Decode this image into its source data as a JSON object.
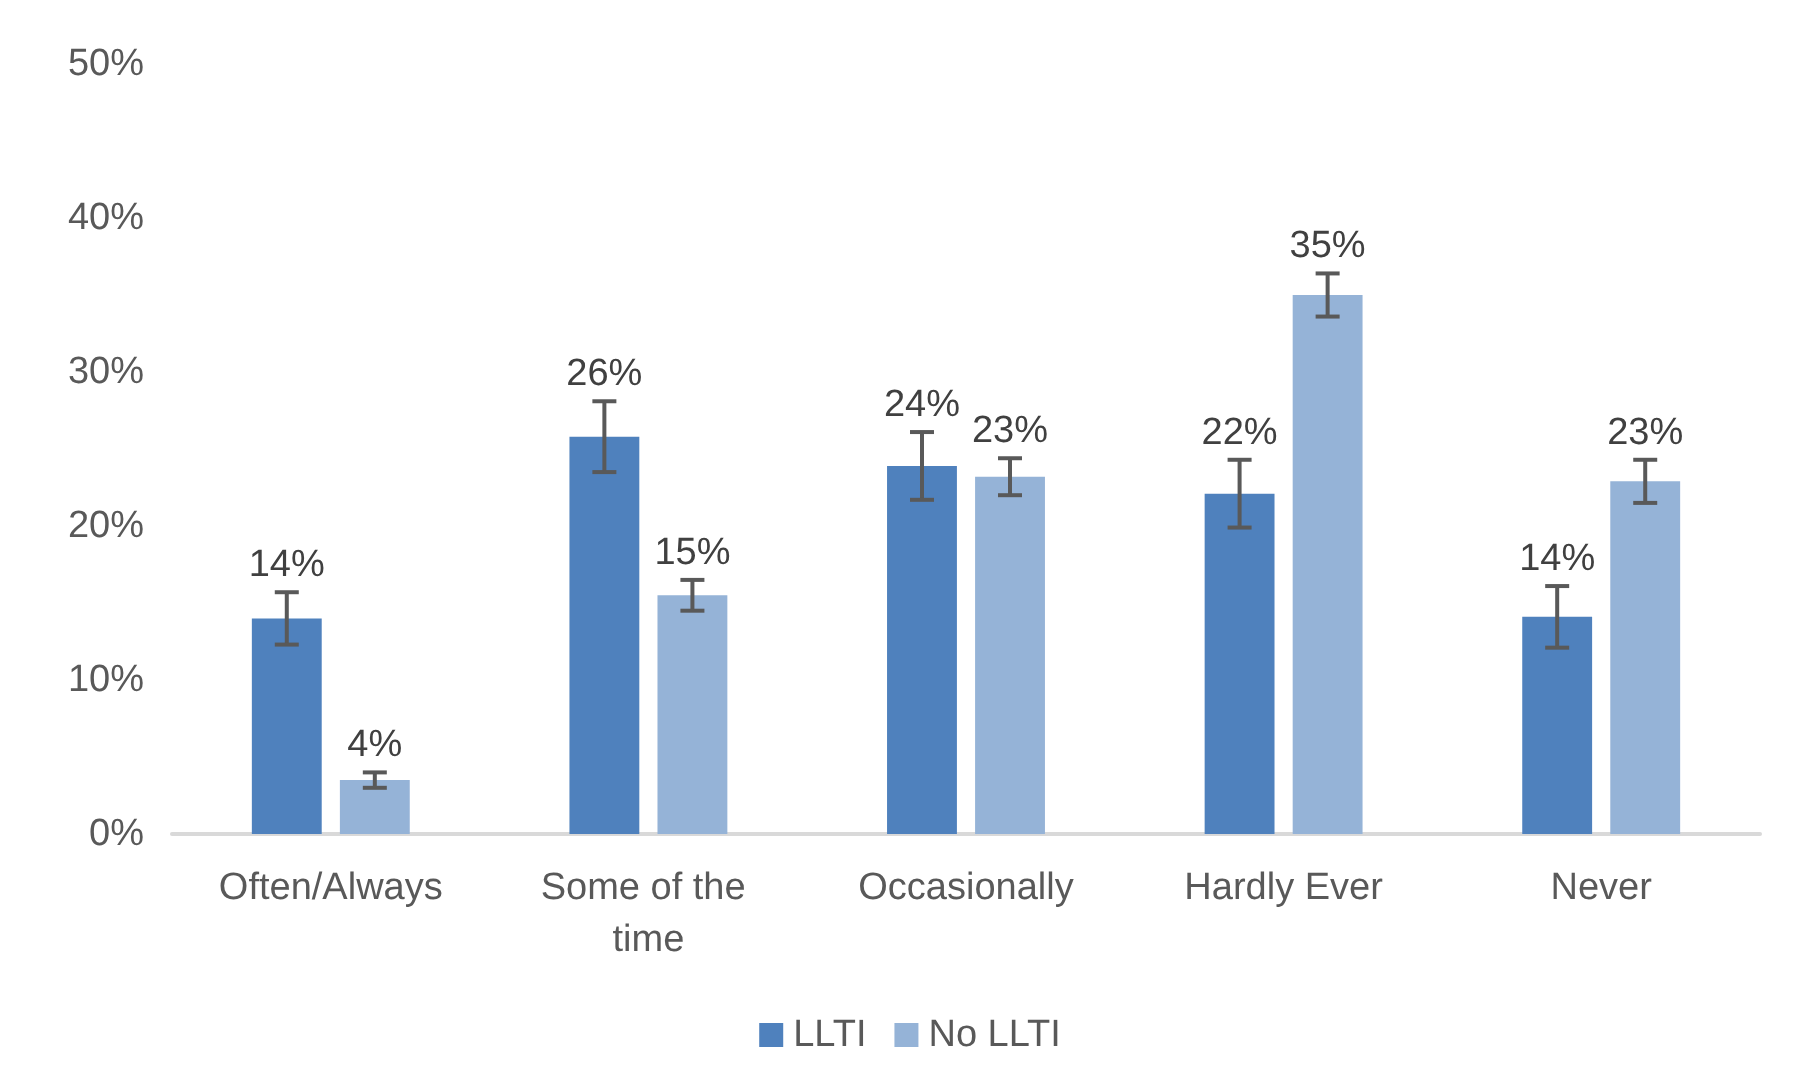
{
  "chart_data": {
    "type": "bar",
    "categories": [
      "Often/Always",
      "Some of the time",
      "Occasionally",
      "Hardly Ever",
      "Never"
    ],
    "series": [
      {
        "name": "LLTI",
        "color": "#4f81bd",
        "values": [
          14.0,
          25.8,
          23.9,
          22.1,
          14.1
        ],
        "errors": [
          1.7,
          2.3,
          2.2,
          2.2,
          2.0
        ],
        "value_labels": [
          "14%",
          "26%",
          "24%",
          "22%",
          "14%"
        ]
      },
      {
        "name": "No LLTI",
        "color": "#95b3d7",
        "values": [
          3.5,
          15.5,
          23.2,
          35.0,
          22.9
        ],
        "errors": [
          0.5,
          1.0,
          1.2,
          1.4,
          1.4
        ],
        "value_labels": [
          "4%",
          "15%",
          "23%",
          "35%",
          "23%"
        ]
      }
    ],
    "ylim": [
      0,
      50
    ],
    "yticks": [
      {
        "value": 0,
        "label": "0%"
      },
      {
        "value": 10,
        "label": "10%"
      },
      {
        "value": 20,
        "label": "20%"
      },
      {
        "value": 30,
        "label": "30%"
      },
      {
        "value": 40,
        "label": "40%"
      },
      {
        "value": 50,
        "label": "50%"
      }
    ],
    "grid": false,
    "legend": "bottom"
  }
}
